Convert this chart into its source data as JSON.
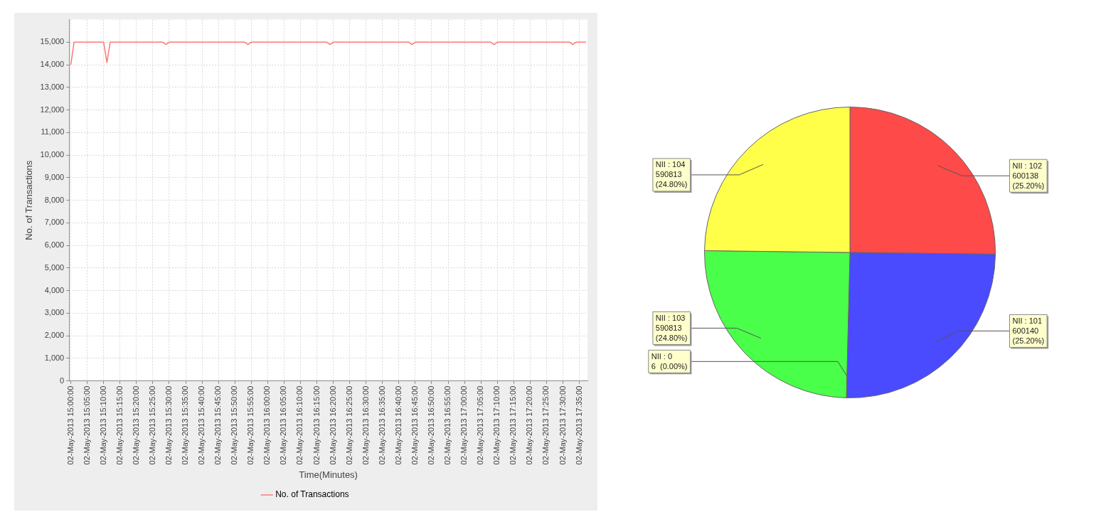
{
  "chart_data": [
    {
      "type": "line",
      "xlabel": "Time(Minutes)",
      "ylabel": "No. of Transactions",
      "legend": "bottom",
      "grid": true,
      "marker": "none",
      "categories": [
        "02-May-2013 15:00:00",
        null,
        null,
        null,
        null,
        "02-May-2013 15:05:00",
        null,
        null,
        null,
        null,
        "02-May-2013 15:10:00",
        null,
        null,
        null,
        null,
        "02-May-2013 15:15:00",
        null,
        null,
        null,
        null,
        "02-May-2013 15:20:00",
        null,
        null,
        null,
        null,
        "02-May-2013 15:25:00",
        null,
        null,
        null,
        null,
        "02-May-2013 15:30:00",
        null,
        null,
        null,
        null,
        "02-May-2013 15:35:00",
        null,
        null,
        null,
        null,
        "02-May-2013 15:40:00",
        null,
        null,
        null,
        null,
        "02-May-2013 15:45:00",
        null,
        null,
        null,
        null,
        "02-May-2013 15:50:00",
        null,
        null,
        null,
        null,
        "02-May-2013 15:55:00",
        null,
        null,
        null,
        null,
        "02-May-2013 16:00:00",
        null,
        null,
        null,
        null,
        "02-May-2013 16:05:00",
        null,
        null,
        null,
        null,
        "02-May-2013 16:10:00",
        null,
        null,
        null,
        null,
        "02-May-2013 16:15:00",
        null,
        null,
        null,
        null,
        "02-May-2013 16:20:00",
        null,
        null,
        null,
        null,
        "02-May-2013 16:25:00",
        null,
        null,
        null,
        null,
        "02-May-2013 16:30:00",
        null,
        null,
        null,
        null,
        "02-May-2013 16:35:00",
        null,
        null,
        null,
        null,
        "02-May-2013 16:40:00",
        null,
        null,
        null,
        null,
        "02-May-2013 16:45:00",
        null,
        null,
        null,
        null,
        "02-May-2013 16:50:00",
        null,
        null,
        null,
        null,
        "02-May-2013 16:55:00",
        null,
        null,
        null,
        null,
        "02-May-2013 17:00:00",
        null,
        null,
        null,
        null,
        "02-May-2013 17:05:00",
        null,
        null,
        null,
        null,
        "02-May-2013 17:10:00",
        null,
        null,
        null,
        null,
        "02-May-2013 17:15:00",
        null,
        null,
        null,
        null,
        "02-May-2013 17:20:00",
        null,
        null,
        null,
        null,
        "02-May-2013 17:25:00",
        null,
        null,
        null,
        null,
        "02-May-2013 17:30:00",
        null,
        null,
        null,
        null,
        "02-May-2013 17:35:00",
        null,
        null
      ],
      "series": [
        {
          "name": "No. of Transactions",
          "color": "#ff7777",
          "values": [
            14000,
            15000,
            15000,
            15000,
            15000,
            15000,
            15000,
            15000,
            15000,
            15000,
            15000,
            14100,
            15000,
            15000,
            15000,
            15000,
            15000,
            15000,
            15000,
            15000,
            15000,
            15000,
            15000,
            15000,
            15000,
            15000,
            15000,
            15000,
            15000,
            14900,
            15000,
            15000,
            15000,
            15000,
            15000,
            15000,
            15000,
            15000,
            15000,
            15000,
            15000,
            15000,
            15000,
            15000,
            15000,
            15000,
            15000,
            15000,
            15000,
            15000,
            15000,
            15000,
            15000,
            15000,
            14900,
            15000,
            15000,
            15000,
            15000,
            15000,
            15000,
            15000,
            15000,
            15000,
            15000,
            15000,
            15000,
            15000,
            15000,
            15000,
            15000,
            15000,
            15000,
            15000,
            15000,
            15000,
            15000,
            15000,
            15000,
            14900,
            15000,
            15000,
            15000,
            15000,
            15000,
            15000,
            15000,
            15000,
            15000,
            15000,
            15000,
            15000,
            15000,
            15000,
            15000,
            15000,
            15000,
            15000,
            15000,
            15000,
            15000,
            15000,
            15000,
            15000,
            14900,
            15000,
            15000,
            15000,
            15000,
            15000,
            15000,
            15000,
            15000,
            15000,
            15000,
            15000,
            15000,
            15000,
            15000,
            15000,
            15000,
            15000,
            15000,
            15000,
            15000,
            15000,
            15000,
            15000,
            15000,
            14900,
            15000,
            15000,
            15000,
            15000,
            15000,
            15000,
            15000,
            15000,
            15000,
            15000,
            15000,
            15000,
            15000,
            15000,
            15000,
            15000,
            15000,
            15000,
            15000,
            15000,
            15000,
            15000,
            15000,
            14900,
            15000,
            15000,
            15000,
            15000
          ]
        }
      ],
      "ylim": [
        0,
        16000
      ],
      "yticks": [
        {
          "value": 0,
          "label": "0"
        },
        {
          "value": 1000,
          "label": "1,000"
        },
        {
          "value": 2000,
          "label": "2,000"
        },
        {
          "value": 3000,
          "label": "3,000"
        },
        {
          "value": 4000,
          "label": "4,000"
        },
        {
          "value": 5000,
          "label": "5,000"
        },
        {
          "value": 6000,
          "label": "6,000"
        },
        {
          "value": 7000,
          "label": "7,000"
        },
        {
          "value": 8000,
          "label": "8,000"
        },
        {
          "value": 9000,
          "label": "9,000"
        },
        {
          "value": 10000,
          "label": "10,000"
        },
        {
          "value": 11000,
          "label": "11,000"
        },
        {
          "value": 12000,
          "label": "12,000"
        },
        {
          "value": 13000,
          "label": "13,000"
        },
        {
          "value": 14000,
          "label": "14,000"
        },
        {
          "value": 15000,
          "label": "15,000"
        }
      ]
    },
    {
      "type": "pie",
      "categories": [
        "NII : 102",
        "NII : 101",
        "NII : 0",
        "NII : 103",
        "NII : 104"
      ],
      "values": [
        600138,
        600140,
        6,
        590813,
        590813
      ],
      "colors": [
        "#ff4a4a",
        "#4a4aff",
        "#ff55ff",
        "#4aff4a",
        "#ffff4a"
      ],
      "value_labels": [
        "600138\n(25.20%)",
        "600140\n(25.20%)",
        "6  (0.00%)",
        "590813\n(24.80%)",
        "590813\n(24.80%)"
      ]
    }
  ]
}
